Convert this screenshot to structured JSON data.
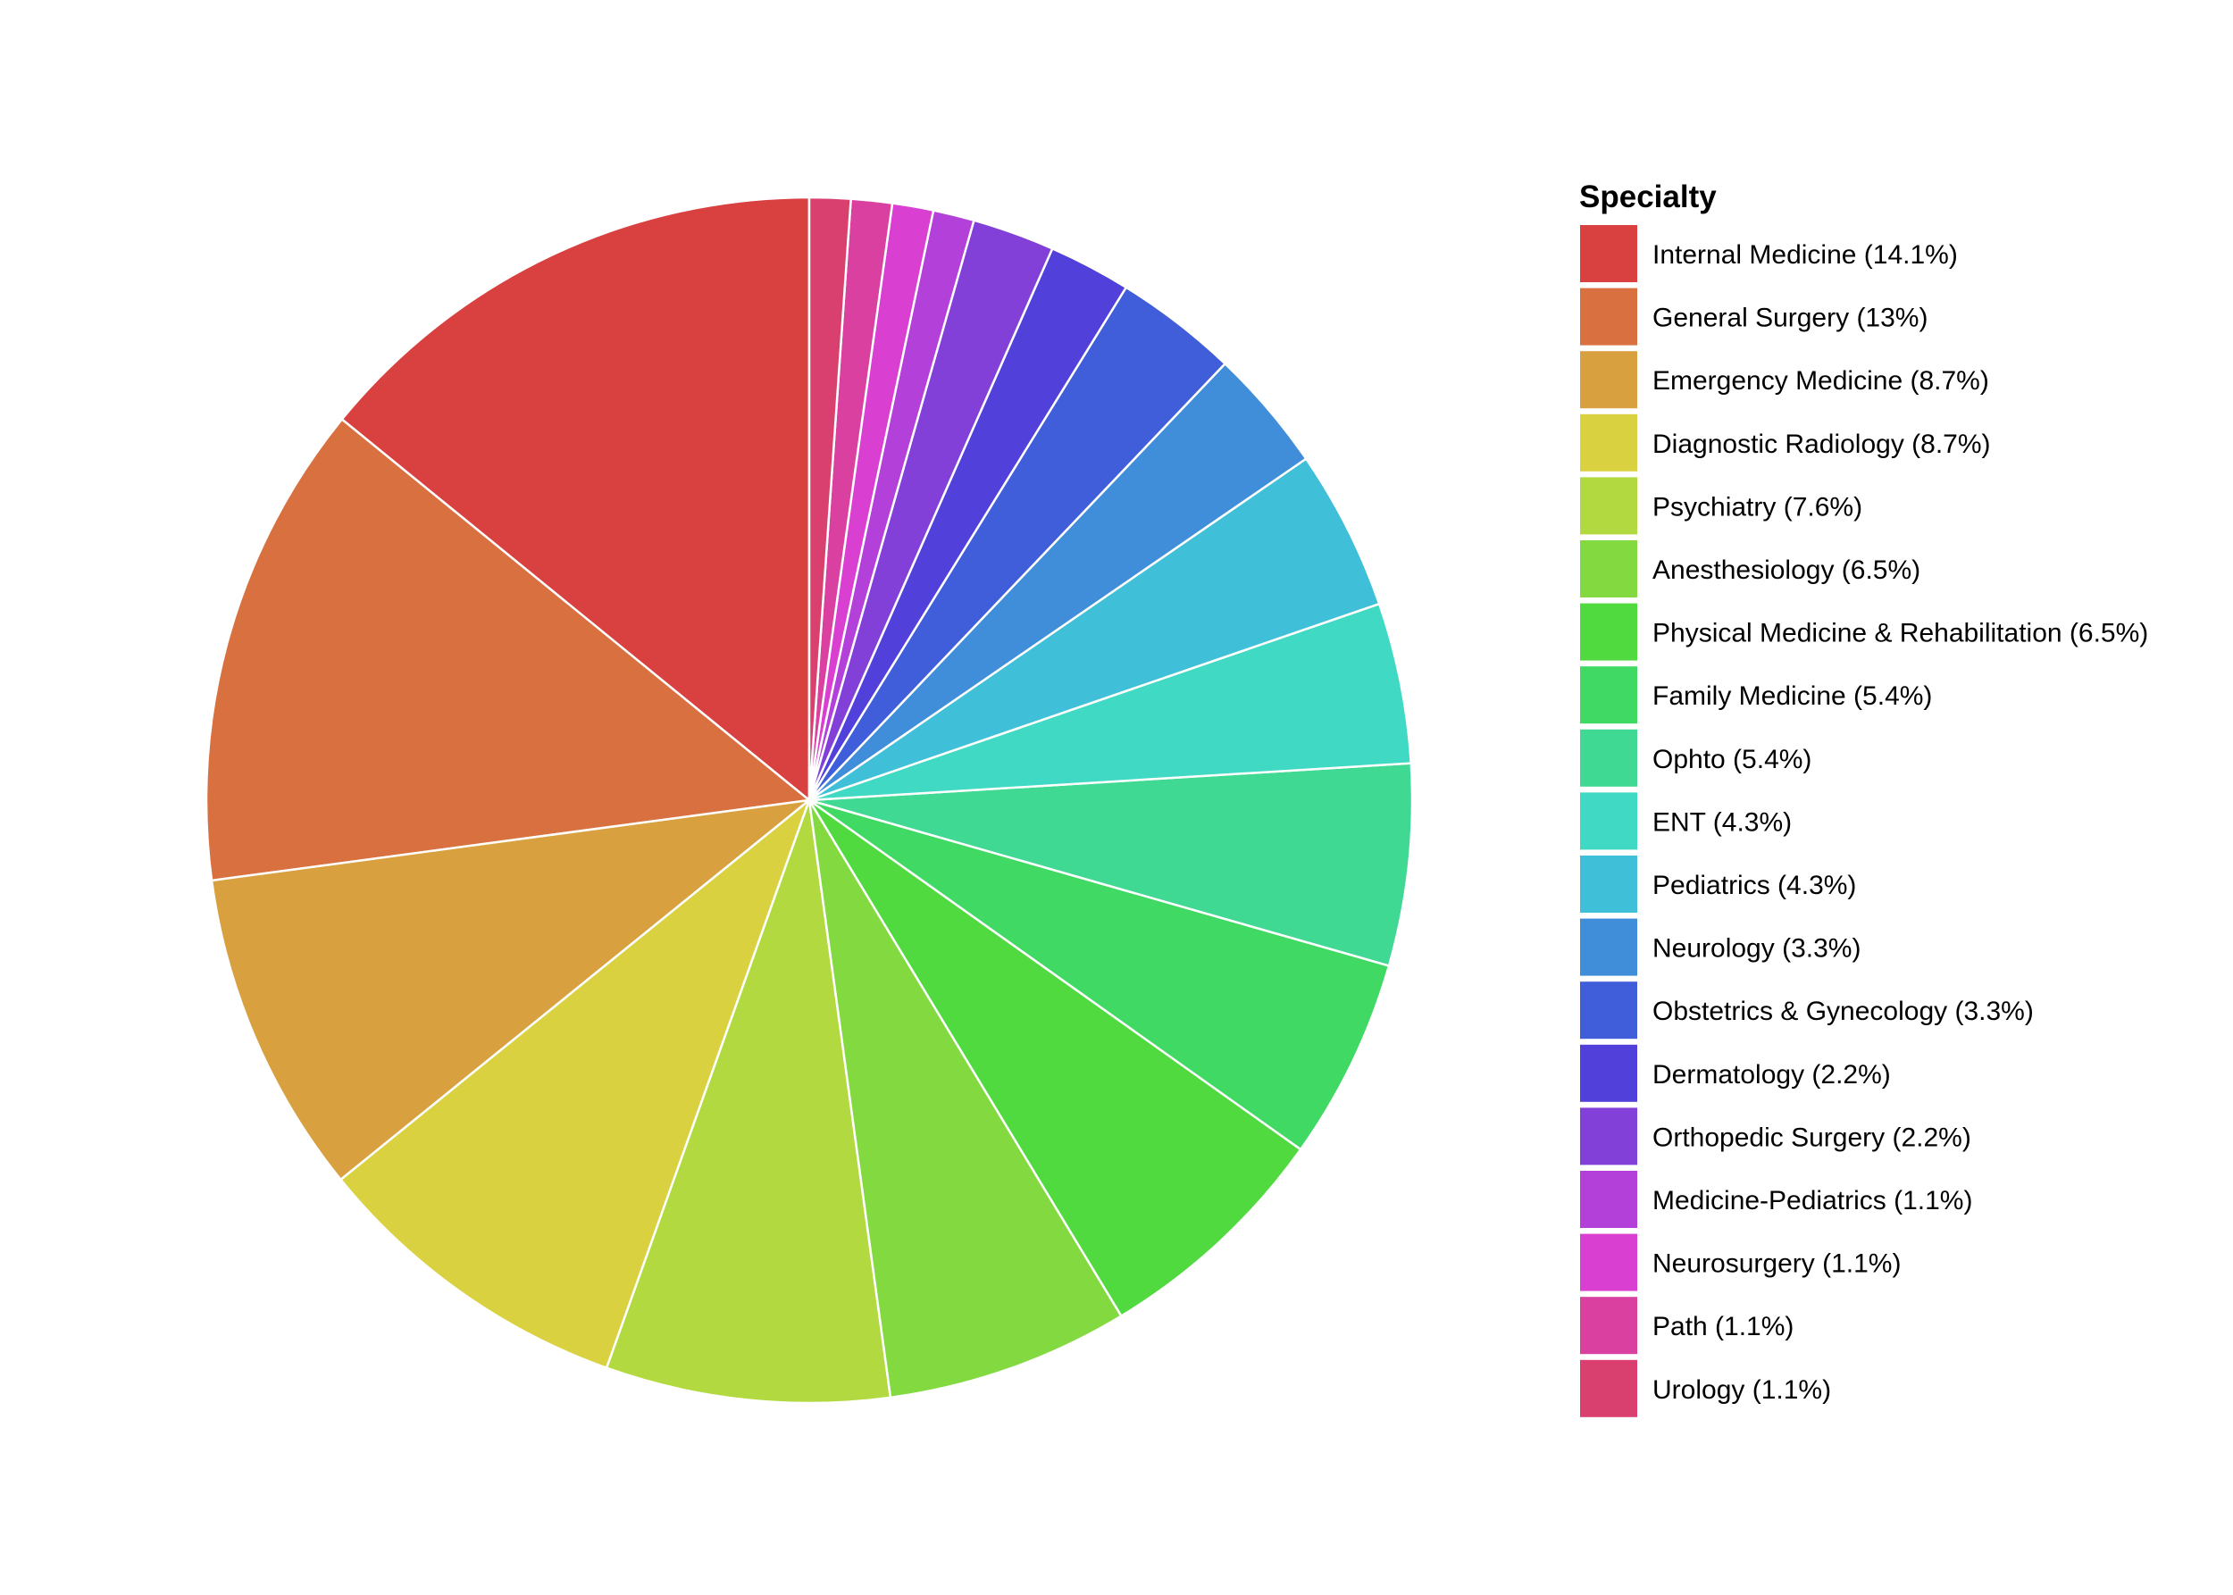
{
  "chart_data": {
    "type": "pie",
    "legend_title": "Specialty",
    "legend_position": "right",
    "slice_border_color": "#ffffff",
    "direction": "clockwise",
    "start": "top",
    "slices": [
      {
        "label": "Internal Medicine (14.1%)",
        "value": 14.1,
        "color": "#D94040"
      },
      {
        "label": "General Surgery (13%)",
        "value": 13.0,
        "color": "#D97040"
      },
      {
        "label": "Emergency Medicine (8.7%)",
        "value": 8.7,
        "color": "#D9A040"
      },
      {
        "label": "Diagnostic Radiology (8.7%)",
        "value": 8.7,
        "color": "#D9D140"
      },
      {
        "label": "Psychiatry (7.6%)",
        "value": 7.6,
        "color": "#B2D940"
      },
      {
        "label": "Anesthesiology (6.5%)",
        "value": 6.5,
        "color": "#82D940"
      },
      {
        "label": "Physical Medicine & Rehabilitation (6.5%)",
        "value": 6.5,
        "color": "#51D940"
      },
      {
        "label": "Family Medicine (5.4%)",
        "value": 5.4,
        "color": "#40D963"
      },
      {
        "label": "Ophto (5.4%)",
        "value": 5.4,
        "color": "#40D993"
      },
      {
        "label": "ENT (4.3%)",
        "value": 4.3,
        "color": "#40D9C4"
      },
      {
        "label": "Pediatrics (4.3%)",
        "value": 4.3,
        "color": "#40BFD9"
      },
      {
        "label": "Neurology (3.3%)",
        "value": 3.3,
        "color": "#408ED9"
      },
      {
        "label": "Obstetrics & Gynecology (3.3%)",
        "value": 3.3,
        "color": "#405ED9"
      },
      {
        "label": "Dermatology (2.2%)",
        "value": 2.2,
        "color": "#5140D9"
      },
      {
        "label": "Orthopedic Surgery (2.2%)",
        "value": 2.2,
        "color": "#8240D9"
      },
      {
        "label": "Medicine-Pediatrics (1.1%)",
        "value": 1.1,
        "color": "#B240D9"
      },
      {
        "label": "Neurosurgery (1.1%)",
        "value": 1.1,
        "color": "#D940D1"
      },
      {
        "label": "Path (1.1%)",
        "value": 1.1,
        "color": "#D940A0"
      },
      {
        "label": "Urology (1.1%)",
        "value": 1.1,
        "color": "#D94070"
      }
    ]
  }
}
